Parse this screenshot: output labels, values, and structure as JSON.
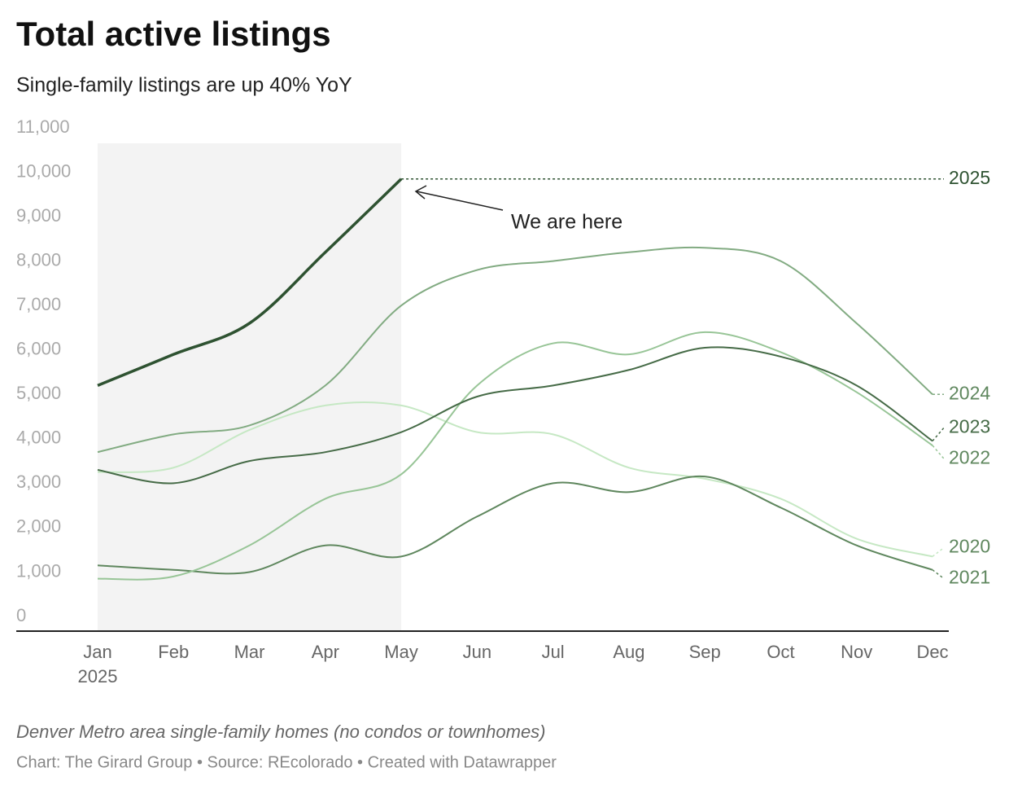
{
  "chart_data": {
    "type": "line",
    "title": "Total active listings",
    "subtitle": "Single-family listings are up 40% YoY",
    "categories": [
      "Jan",
      "Feb",
      "Mar",
      "Apr",
      "May",
      "Jun",
      "Jul",
      "Aug",
      "Sep",
      "Oct",
      "Nov",
      "Dec"
    ],
    "x_year_label": "2025",
    "shaded_range": {
      "from": "Jan",
      "to": "May"
    },
    "annotation": "We are here",
    "note": "Denver Metro area single-family homes (no condos or townhomes)",
    "credit": "Chart: The Girard Group • Source: REcolorado • Created with Datawrapper",
    "ylim": [
      0,
      11000
    ],
    "yticks": [
      0,
      {
        "value": 1000,
        "label": "1,000"
      },
      {
        "value": 2000,
        "label": "2,000"
      },
      {
        "value": 3000,
        "label": "3,000"
      },
      {
        "value": 4000,
        "label": "4,000"
      },
      {
        "value": 5000,
        "label": "5,000"
      },
      {
        "value": 6000,
        "label": "6,000"
      },
      {
        "value": 7000,
        "label": "7,000"
      },
      {
        "value": 8000,
        "label": "8,000"
      },
      {
        "value": 9000,
        "label": "9,000"
      },
      {
        "value": 10000,
        "label": "10,000"
      },
      {
        "value": 11000,
        "label": "11,000"
      }
    ],
    "series": [
      {
        "name": "2020",
        "color": "#c6e8c4",
        "values": [
          3250,
          3350,
          4200,
          4750,
          4750,
          4150,
          4100,
          3350,
          3100,
          2650,
          1750,
          1350
        ]
      },
      {
        "name": "2021",
        "color": "#5f875e",
        "values": [
          1150,
          1050,
          1000,
          1600,
          1350,
          2250,
          3000,
          2800,
          3150,
          2450,
          1600,
          1050
        ]
      },
      {
        "name": "2022",
        "color": "#98c597",
        "values": [
          850,
          900,
          1600,
          2650,
          3200,
          5200,
          6150,
          5900,
          6400,
          5950,
          5050,
          3850
        ]
      },
      {
        "name": "2023",
        "color": "#466b47",
        "values": [
          3300,
          3000,
          3500,
          3700,
          4150,
          4950,
          5200,
          5550,
          6050,
          5850,
          5200,
          3950
        ]
      },
      {
        "name": "2024",
        "color": "#82ab82",
        "values": [
          3700,
          4100,
          4300,
          5200,
          7000,
          7800,
          8000,
          8200,
          8300,
          8000,
          6600,
          5000
        ]
      },
      {
        "name": "2025",
        "color": "#2e5231",
        "values": [
          5200,
          5900,
          6600,
          8200,
          9850,
          null,
          null,
          null,
          null,
          null,
          null,
          null
        ]
      }
    ]
  }
}
